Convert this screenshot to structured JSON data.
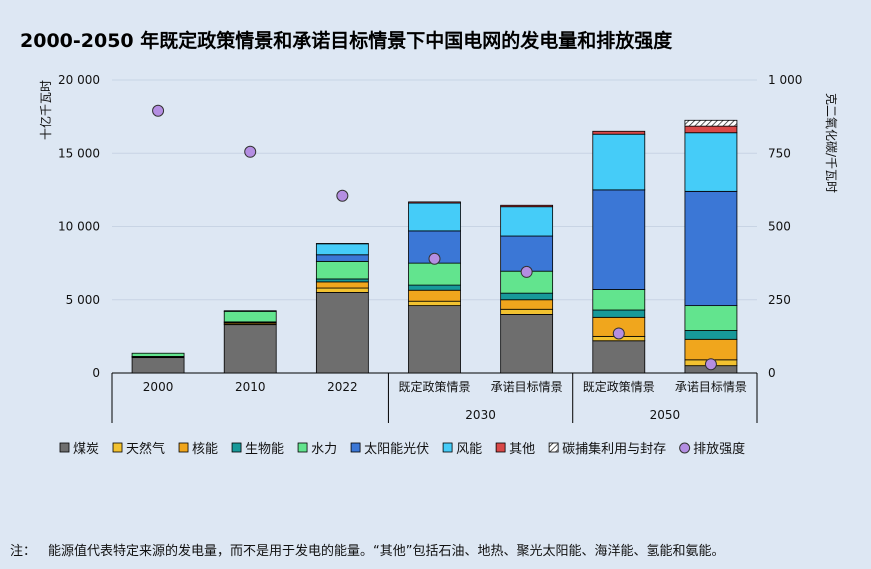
{
  "title": "2000-2050 年既定政策情景和承诺目标情景下中国电网的发电量和排放强度",
  "note": {
    "label": "注：",
    "text": "能源值代表特定来源的发电量，而不是用于发电的能量。“其他”包括石油、地热、聚光太阳能、海洋能、氢能和氨能。"
  },
  "chart_data": {
    "type": "bar",
    "stacked": true,
    "ylabel": "十亿千瓦时",
    "y2label": "克二氧化碳/千瓦时",
    "ylim": [
      0,
      20000
    ],
    "y2lim": [
      0,
      1000
    ],
    "yticks": [
      "20 000",
      "15 000",
      "10 000",
      "5 000",
      "0"
    ],
    "y2ticks": [
      "1 000",
      "750",
      "500",
      "250",
      "0"
    ],
    "categories": [
      "2000",
      "2010",
      "2022",
      "既定政策情景",
      "承诺目标情景",
      "既定政策情景",
      "承诺目标情景"
    ],
    "groups": [
      {
        "label": "2030",
        "from": 3,
        "to": 4
      },
      {
        "label": "2050",
        "from": 5,
        "to": 6
      }
    ],
    "series": [
      {
        "name": "煤炭",
        "color": "#6e6e6e",
        "values": [
          1050,
          3300,
          5500,
          4600,
          4000,
          2200,
          500
        ]
      },
      {
        "name": "天然气",
        "color": "#f2c230",
        "values": [
          50,
          60,
          300,
          300,
          350,
          300,
          400
        ]
      },
      {
        "name": "核能",
        "color": "#f0a61d",
        "values": [
          20,
          80,
          420,
          750,
          650,
          1300,
          1400
        ]
      },
      {
        "name": "生物能",
        "color": "#17999a",
        "values": [
          10,
          50,
          200,
          350,
          450,
          500,
          600
        ]
      },
      {
        "name": "水力",
        "color": "#62e48e",
        "values": [
          220,
          720,
          1200,
          1500,
          1500,
          1400,
          1700
        ]
      },
      {
        "name": "太阳能光伏",
        "color": "#3b77d6",
        "values": [
          0,
          0,
          450,
          2200,
          2400,
          6800,
          7800
        ]
      },
      {
        "name": "风能",
        "color": "#45ccf8",
        "values": [
          0,
          40,
          750,
          1900,
          2000,
          3800,
          4000
        ]
      },
      {
        "name": "其他",
        "color": "#d94848",
        "values": [
          0,
          0,
          20,
          80,
          100,
          200,
          450
        ]
      },
      {
        "name": "碳捕集利用与封存",
        "color": "#ffffff",
        "values": [
          0,
          0,
          0,
          0,
          0,
          0,
          400
        ]
      }
    ],
    "emission_intensity": {
      "name": "排放强度",
      "color": "#b48ee2",
      "values": [
        895,
        755,
        605,
        390,
        345,
        135,
        30
      ]
    }
  }
}
